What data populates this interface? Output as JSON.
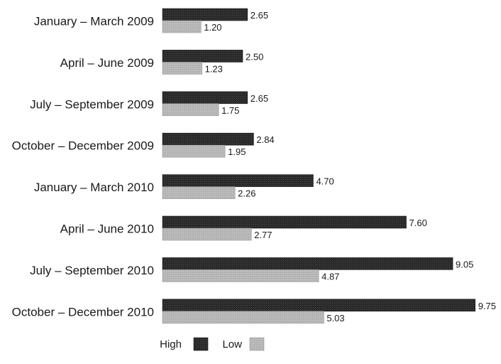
{
  "chart_data": {
    "type": "bar",
    "orientation": "horizontal",
    "categories": [
      "January – March 2009",
      "April – June 2009",
      "July – September 2009",
      "October – December 2009",
      "January – March 2010",
      "April – June 2010",
      "July – September 2010",
      "October – December 2010"
    ],
    "series": [
      {
        "name": "High",
        "color": "#2a2a2a",
        "values": [
          2.65,
          2.5,
          2.65,
          2.84,
          4.7,
          7.6,
          9.05,
          9.75
        ],
        "labels": [
          "2.65",
          "2.50",
          "2.65",
          "2.84",
          "4.70",
          "7.60",
          "9.05",
          "9.75"
        ]
      },
      {
        "name": "Low",
        "color": "#b4b4b4",
        "values": [
          1.2,
          1.23,
          1.75,
          1.95,
          2.26,
          2.77,
          4.87,
          5.03
        ],
        "labels": [
          "1.20",
          "1.23",
          "1.75",
          "1.95",
          "2.26",
          "2.77",
          "4.87",
          "5.03"
        ]
      }
    ],
    "title": "",
    "xlabel": "",
    "ylabel": "",
    "xlim": [
      0,
      10
    ],
    "grid": false,
    "legend_position": "bottom-center"
  }
}
